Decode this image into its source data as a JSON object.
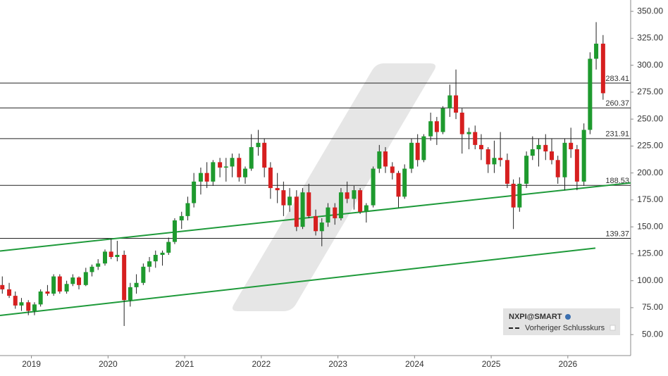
{
  "chart_data": {
    "type": "candlestick",
    "legend": {
      "title": "NXPI@SMART",
      "entries": [
        "Vorheriger Schlusskurs"
      ]
    },
    "x": [
      2018.62,
      2018.71,
      2018.79,
      2018.87,
      2018.96,
      2019.04,
      2019.12,
      2019.21,
      2019.29,
      2019.37,
      2019.46,
      2019.54,
      2019.62,
      2019.71,
      2019.79,
      2019.87,
      2019.96,
      2020.04,
      2020.12,
      2020.21,
      2020.29,
      2020.37,
      2020.46,
      2020.54,
      2020.62,
      2020.71,
      2020.79,
      2020.87,
      2020.96,
      2021.04,
      2021.12,
      2021.21,
      2021.29,
      2021.37,
      2021.46,
      2021.54,
      2021.62,
      2021.71,
      2021.79,
      2021.87,
      2021.96,
      2022.04,
      2022.12,
      2022.21,
      2022.29,
      2022.37,
      2022.46,
      2022.54,
      2022.62,
      2022.71,
      2022.79,
      2022.87,
      2022.96,
      2023.04,
      2023.12,
      2023.21,
      2023.29,
      2023.37,
      2023.46,
      2023.54,
      2023.62,
      2023.71,
      2023.79,
      2023.87,
      2023.96,
      2024.04,
      2024.12,
      2024.21,
      2024.29,
      2024.37,
      2024.46,
      2024.54,
      2024.62,
      2024.71,
      2024.79,
      2024.87,
      2024.96,
      2025.04,
      2025.12,
      2025.21,
      2025.29,
      2025.37,
      2025.46,
      2025.54,
      2025.62,
      2025.71,
      2025.79,
      2025.87,
      2025.96,
      2026.04,
      2026.12,
      2026.21,
      2026.29,
      2026.37,
      2026.46
    ],
    "open": [
      96,
      92,
      86,
      77,
      80,
      72,
      78,
      90,
      88,
      104,
      90,
      97,
      103,
      96,
      108,
      113,
      116,
      127,
      122,
      124,
      82,
      94,
      98,
      113,
      118,
      124,
      126,
      136,
      156,
      160,
      172,
      192,
      200,
      192,
      210,
      205,
      206,
      214,
      196,
      204,
      224,
      228,
      205,
      186,
      184,
      170,
      178,
      150,
      182,
      160,
      146,
      154,
      168,
      158,
      182,
      176,
      184,
      164,
      170,
      204,
      220,
      206,
      200,
      178,
      204,
      228,
      212,
      234,
      248,
      238,
      260,
      272,
      256,
      236,
      238,
      226,
      222,
      208,
      214,
      212,
      190,
      168,
      190,
      216,
      222,
      226,
      220,
      212,
      196,
      228,
      222,
      192,
      240,
      306,
      320
    ],
    "high": [
      104,
      98,
      90,
      84,
      82,
      80,
      92,
      96,
      106,
      106,
      100,
      106,
      104,
      112,
      115,
      120,
      129,
      139,
      137,
      128,
      98,
      106,
      116,
      122,
      128,
      128,
      140,
      158,
      164,
      178,
      200,
      205,
      210,
      212,
      214,
      214,
      218,
      218,
      206,
      236,
      240,
      232,
      210,
      200,
      192,
      186,
      184,
      186,
      190,
      166,
      158,
      172,
      172,
      186,
      192,
      188,
      186,
      172,
      206,
      226,
      224,
      210,
      202,
      208,
      232,
      236,
      236,
      256,
      252,
      262,
      282,
      296,
      260,
      242,
      244,
      236,
      224,
      230,
      238,
      218,
      194,
      196,
      220,
      234,
      232,
      236,
      232,
      216,
      232,
      242,
      226,
      246,
      312,
      340,
      328
    ],
    "low": [
      88,
      84,
      74,
      72,
      68,
      68,
      76,
      86,
      86,
      88,
      88,
      95,
      92,
      95,
      104,
      110,
      114,
      120,
      118,
      58,
      76,
      88,
      96,
      108,
      112,
      114,
      124,
      134,
      148,
      156,
      168,
      180,
      186,
      188,
      196,
      192,
      196,
      192,
      190,
      202,
      216,
      196,
      176,
      172,
      160,
      164,
      146,
      148,
      158,
      142,
      132,
      150,
      152,
      156,
      172,
      166,
      162,
      154,
      168,
      200,
      200,
      194,
      168,
      176,
      200,
      206,
      210,
      230,
      226,
      236,
      252,
      250,
      218,
      222,
      222,
      212,
      200,
      200,
      206,
      186,
      148,
      164,
      186,
      212,
      206,
      212,
      208,
      190,
      184,
      214,
      184,
      188,
      236,
      296,
      268
    ],
    "close": [
      92,
      86,
      77,
      80,
      72,
      78,
      90,
      88,
      104,
      90,
      97,
      103,
      96,
      108,
      113,
      116,
      127,
      122,
      124,
      82,
      94,
      98,
      113,
      118,
      124,
      126,
      136,
      156,
      160,
      172,
      192,
      200,
      192,
      210,
      205,
      206,
      214,
      196,
      204,
      224,
      228,
      205,
      186,
      184,
      170,
      178,
      150,
      182,
      160,
      146,
      154,
      168,
      158,
      182,
      176,
      184,
      164,
      170,
      204,
      220,
      206,
      200,
      178,
      204,
      228,
      212,
      234,
      248,
      238,
      260,
      272,
      256,
      236,
      238,
      226,
      222,
      208,
      214,
      212,
      190,
      168,
      190,
      216,
      222,
      226,
      220,
      212,
      196,
      228,
      222,
      192,
      240,
      306,
      320,
      274
    ],
    "up_color": "#1e9a2e",
    "down_color": "#d61f1f",
    "levels": [
      283.41,
      260.37,
      231.91,
      188.53,
      139.37
    ],
    "trend_lines": [
      {
        "color": "#1e9a3a",
        "x": [
          2018.59,
          2026.82
        ],
        "y": [
          127.6,
          190.8
        ]
      },
      {
        "color": "#1e9a3a",
        "x": [
          2018.59,
          2026.36
        ],
        "y": [
          67.8,
          130.3
        ]
      }
    ],
    "xlim": [
      2018.59,
      2026.82
    ],
    "xticks": [
      2019,
      2020,
      2021,
      2022,
      2023,
      2024,
      2025,
      2026
    ],
    "ylim": [
      30.53,
      360.53
    ],
    "yticks": [
      {
        "value": 50,
        "label": "50.00"
      },
      {
        "value": 75,
        "label": "75.00"
      },
      {
        "value": 100,
        "label": "100.00"
      },
      {
        "value": 125,
        "label": "125.00"
      },
      {
        "value": 150,
        "label": "150.00"
      },
      {
        "value": 175,
        "label": "175.00"
      },
      {
        "value": 200,
        "label": "200.00"
      },
      {
        "value": 225,
        "label": "225.00"
      },
      {
        "value": 250,
        "label": "250.00"
      },
      {
        "value": 275,
        "label": "275.00"
      },
      {
        "value": 300,
        "label": "300.00"
      },
      {
        "value": 325,
        "label": "325.00"
      },
      {
        "value": 350,
        "label": "350.00"
      }
    ]
  }
}
